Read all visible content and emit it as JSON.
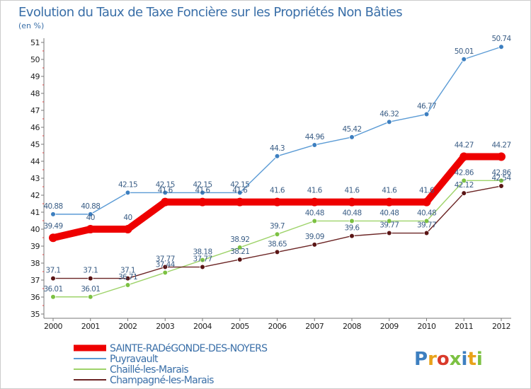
{
  "chart_data": {
    "type": "line",
    "title": "Evolution du Taux de Taxe Foncière sur les Propriétés Non Bâties",
    "subtitle": "(en %)",
    "xlabel": "",
    "ylabel": "",
    "x": [
      "2000",
      "2001",
      "2002",
      "2003",
      "2004",
      "2005",
      "2006",
      "2007",
      "2008",
      "2009",
      "2010",
      "2011",
      "2012"
    ],
    "ylim": [
      35,
      51
    ],
    "yticks": [
      "35",
      "36",
      "37",
      "38",
      "39",
      "40",
      "41",
      "42",
      "43",
      "44",
      "45",
      "46",
      "47",
      "48",
      "49",
      "50",
      "51"
    ],
    "grid": false,
    "legend_position": "bottom-left",
    "series": [
      {
        "name": "SAINTE-RADéGONDE-DES-NOYERS",
        "color": "#ee0000",
        "values": [
          39.49,
          40,
          40,
          41.6,
          41.6,
          41.6,
          41.6,
          41.6,
          41.6,
          41.6,
          41.6,
          44.27,
          44.27
        ],
        "labels": [
          "39.49",
          "40",
          "40",
          "41.6",
          "41.6",
          "41.6",
          "41.6",
          "41.6",
          "41.6",
          "41.6",
          "41.6",
          "44.27",
          "44.27"
        ]
      },
      {
        "name": "Puyravault",
        "color": "#5b9bd5",
        "point_color": "#3d7fc0",
        "values": [
          40.88,
          40.88,
          42.15,
          42.15,
          42.15,
          42.15,
          44.3,
          44.96,
          45.42,
          46.32,
          46.77,
          50.01,
          50.74
        ],
        "labels": [
          "40.88",
          "40.88",
          "42.15",
          "42.15",
          "42.15",
          "42.15",
          "44.3",
          "44.96",
          "45.42",
          "46.32",
          "46.77",
          "50.01",
          "50.74"
        ]
      },
      {
        "name": "Chaillé-les-Marais",
        "color": "#9ed36a",
        "point_color": "#7cc142",
        "values": [
          36.01,
          36.01,
          36.71,
          37.44,
          38.18,
          38.92,
          39.7,
          40.48,
          40.48,
          40.48,
          40.48,
          42.86,
          42.86
        ],
        "labels": [
          "36.01",
          "36.01",
          "36.71",
          "37.44",
          "38.18",
          "38.92",
          "39.7",
          "40.48",
          "40.48",
          "40.48",
          "40.48",
          "42.86",
          "42.86"
        ]
      },
      {
        "name": "Champagné-les-Marais",
        "color": "#6b2424",
        "point_color": "#5a1515",
        "values": [
          37.1,
          37.1,
          37.1,
          37.77,
          37.77,
          38.21,
          38.65,
          39.09,
          39.6,
          39.77,
          39.77,
          42.12,
          42.54
        ],
        "labels": [
          "37.1",
          "37.1",
          "37.1",
          "37.77",
          "37.77",
          "38.21",
          "38.65",
          "39.09",
          "39.6",
          "39.77",
          "39.77",
          "42.12",
          "42.54"
        ]
      }
    ]
  },
  "logo": {
    "text": "Proxiti",
    "letter_colors": [
      "#3d7fc0",
      "#e8a21a",
      "#d93a2b",
      "#7cc142",
      "#3d7fc0",
      "#e8a21a",
      "#7cc142"
    ]
  }
}
